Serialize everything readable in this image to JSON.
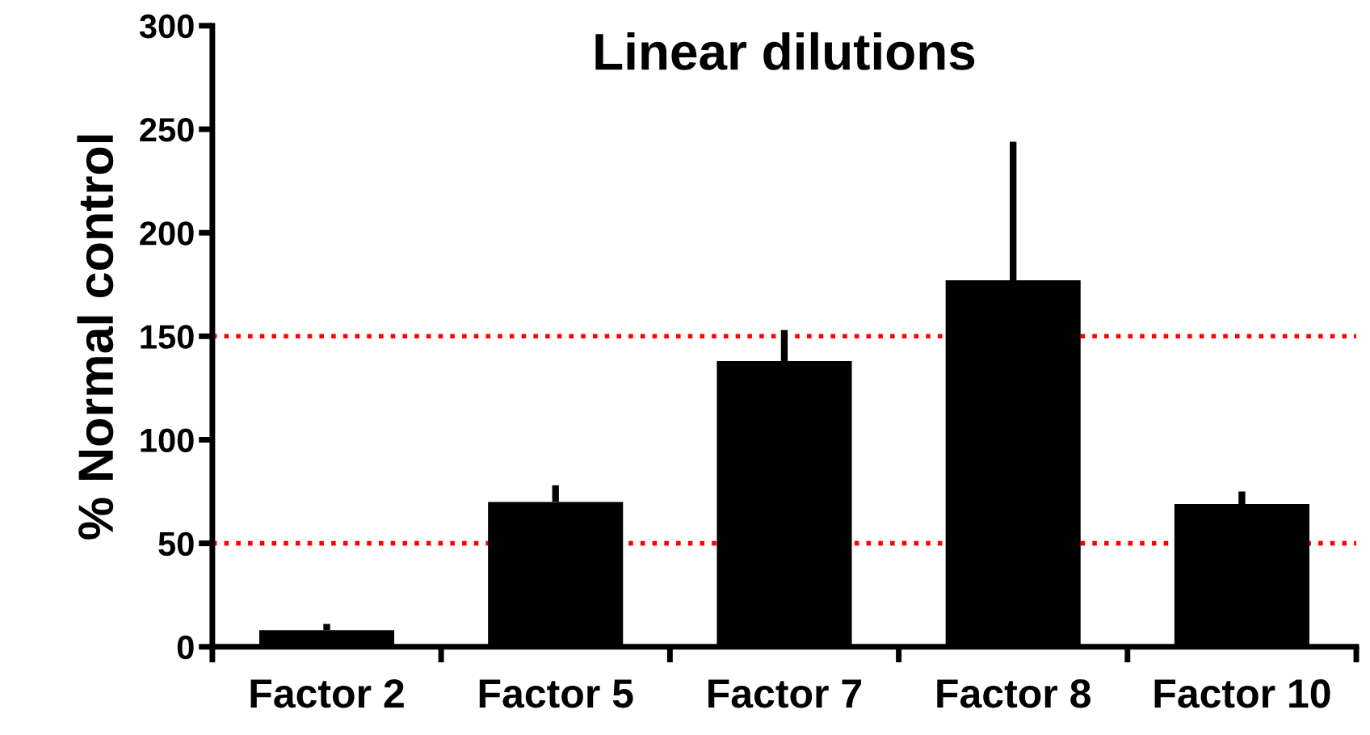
{
  "chart_data": {
    "type": "bar",
    "title": "Linear dilutions",
    "ylabel": "% Normal control",
    "categories": [
      "Factor 2",
      "Factor 5",
      "Factor 7",
      "Factor 8",
      "Factor 10"
    ],
    "values": [
      8,
      70,
      138,
      177,
      69
    ],
    "errors": [
      [
        8,
        11
      ],
      [
        70,
        78
      ],
      [
        138,
        153
      ],
      [
        177,
        244
      ],
      [
        69,
        75
      ]
    ],
    "color": "#000000",
    "ylim": [
      0,
      300
    ],
    "yticks": [
      0,
      50,
      100,
      150,
      200,
      250,
      300
    ],
    "ref_lines": [
      {
        "axis": "y",
        "value": 50,
        "color": "#ff0000",
        "line_style": "dotted"
      },
      {
        "axis": "y",
        "value": 150,
        "color": "#ff0000",
        "line_style": "dotted"
      }
    ],
    "grid": false,
    "legend": false
  }
}
